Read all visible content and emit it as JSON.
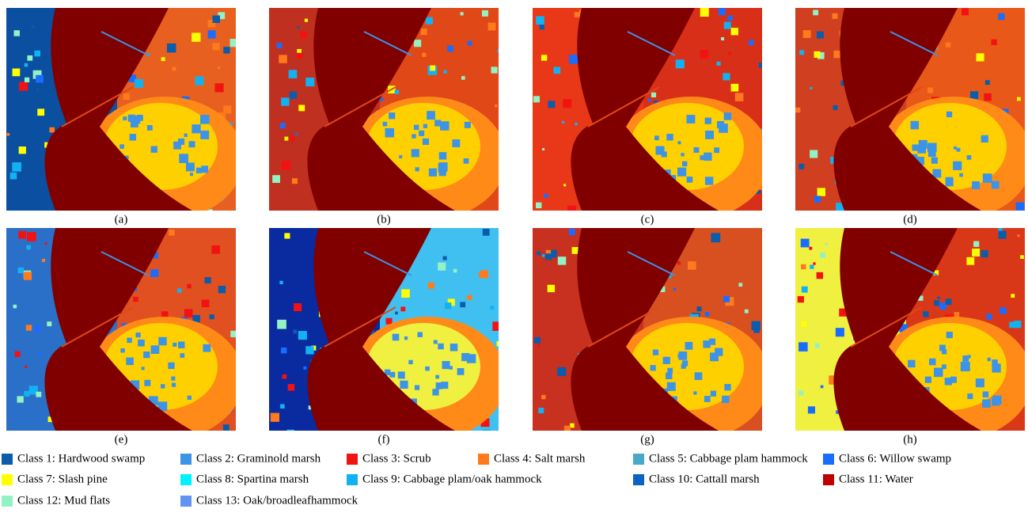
{
  "panels": [
    {
      "label": "(a)"
    },
    {
      "label": "(b)"
    },
    {
      "label": "(c)"
    },
    {
      "label": "(d)"
    },
    {
      "label": "(e)"
    },
    {
      "label": "(f)"
    },
    {
      "label": "(g)"
    },
    {
      "label": "(h)"
    }
  ],
  "legend": [
    {
      "label": "Class 1: Hardwood swamp",
      "color": "#0b5cab"
    },
    {
      "label": "Class 2: Graminold marsh",
      "color": "#3d93e6"
    },
    {
      "label": "Class 3: Scrub",
      "color": "#f21212"
    },
    {
      "label": "Class 4: Salt marsh",
      "color": "#ff7a1c"
    },
    {
      "label": "Class 5: Cabbage plam hammock",
      "color": "#4aa9c9"
    },
    {
      "label": "Class 6: Willow swamp",
      "color": "#1a6cff"
    },
    {
      "label": "Class 7: Slash pine",
      "color": "#ffff00"
    },
    {
      "label": "Class 8: Spartina marsh",
      "color": "#00f2ff"
    },
    {
      "label": "Class 9: Cabbage plam/oak hammock",
      "color": "#12b2f2"
    },
    {
      "label": "Class 10: Cattall marsh",
      "color": "#0a62c2"
    },
    {
      "label": "Class 11: Water",
      "color": "#c00000"
    },
    {
      "label": "Class 12: Mud flats",
      "color": "#93f2c4"
    },
    {
      "label": "Class 13: Oak/broadleafhammock",
      "color": "#6393f2"
    }
  ]
}
